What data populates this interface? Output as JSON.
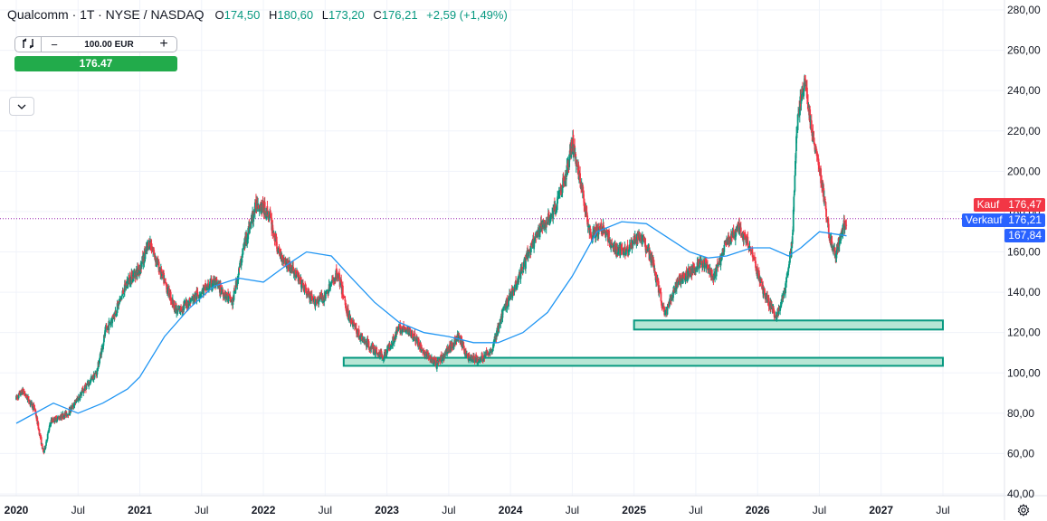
{
  "header": {
    "symbol": "Qualcomm · 1T · NYSE / NASDAQ",
    "open_label": "O",
    "open": "174,50",
    "high_label": "H",
    "high": "180,60",
    "low_label": "L",
    "low": "173,20",
    "close_label": "C",
    "close": "176,21",
    "change": "+2,59 (+1,49%)"
  },
  "trade_panel": {
    "quantity": "100.00 EUR",
    "buy_price": "176.47"
  },
  "price_tags": {
    "kauf_label": "Kauf",
    "kauf_value": "176,47",
    "verkauf_label": "Verkauf",
    "verkauf_value": "176,21",
    "ma_value": "167,84"
  },
  "colors": {
    "up": "#089981",
    "down": "#f23645",
    "ma_line": "#2196f3",
    "zone_fill": "#b7e6d5",
    "zone_border": "#089981",
    "kauf": "#f23645",
    "verkauf": "#2962ff",
    "buy_button": "#22ab4b"
  },
  "icons": [
    "chart-type-icon",
    "minus-icon",
    "plus-icon",
    "chevron-down-icon",
    "settings-icon"
  ],
  "chart_data": {
    "type": "candlestick",
    "y_axis": {
      "ticks": [
        40,
        60,
        80,
        100,
        120,
        140,
        160,
        180,
        200,
        220,
        240,
        260,
        280
      ],
      "tick_labels": [
        "40,00",
        "60,00",
        "80,00",
        "100,00",
        "120,00",
        "140,00",
        "160,00",
        "180,00",
        "200,00",
        "220,00",
        "240,00",
        "260,00",
        "280,00"
      ],
      "range": [
        38,
        288
      ]
    },
    "x_axis": {
      "labels": [
        "2020",
        "Jul",
        "2021",
        "Jul",
        "2022",
        "Jul",
        "2023",
        "Jul",
        "2024",
        "Jul",
        "2025",
        "Jul",
        "2026",
        "Jul",
        "2027",
        "Jul"
      ],
      "label_t": [
        2020.0,
        2020.5,
        2021.0,
        2021.5,
        2022.0,
        2022.5,
        2023.0,
        2023.5,
        2024.0,
        2024.5,
        2025.0,
        2025.5,
        2026.0,
        2026.5,
        2027.0,
        2027.5
      ],
      "range": [
        2020.0,
        2028.13
      ]
    },
    "price_path": [
      [
        2019.9,
        80
      ],
      [
        2020.05,
        91
      ],
      [
        2020.15,
        82
      ],
      [
        2020.22,
        60
      ],
      [
        2020.28,
        76
      ],
      [
        2020.42,
        80
      ],
      [
        2020.55,
        92
      ],
      [
        2020.65,
        100
      ],
      [
        2020.72,
        120
      ],
      [
        2020.8,
        130
      ],
      [
        2020.9,
        145
      ],
      [
        2021.0,
        152
      ],
      [
        2021.08,
        165
      ],
      [
        2021.18,
        148
      ],
      [
        2021.3,
        130
      ],
      [
        2021.45,
        138
      ],
      [
        2021.6,
        145
      ],
      [
        2021.75,
        135
      ],
      [
        2021.85,
        165
      ],
      [
        2021.95,
        185
      ],
      [
        2022.05,
        178
      ],
      [
        2022.12,
        160
      ],
      [
        2022.25,
        150
      ],
      [
        2022.4,
        135
      ],
      [
        2022.5,
        138
      ],
      [
        2022.6,
        150
      ],
      [
        2022.68,
        130
      ],
      [
        2022.78,
        118
      ],
      [
        2022.88,
        112
      ],
      [
        2022.97,
        108
      ],
      [
        2023.1,
        122
      ],
      [
        2023.2,
        120
      ],
      [
        2023.3,
        110
      ],
      [
        2023.4,
        104
      ],
      [
        2023.5,
        112
      ],
      [
        2023.58,
        118
      ],
      [
        2023.65,
        108
      ],
      [
        2023.75,
        106
      ],
      [
        2023.85,
        112
      ],
      [
        2023.95,
        132
      ],
      [
        2024.05,
        145
      ],
      [
        2024.15,
        160
      ],
      [
        2024.25,
        172
      ],
      [
        2024.35,
        180
      ],
      [
        2024.45,
        198
      ],
      [
        2024.5,
        215
      ],
      [
        2024.58,
        190
      ],
      [
        2024.65,
        168
      ],
      [
        2024.75,
        172
      ],
      [
        2024.85,
        160
      ],
      [
        2024.95,
        162
      ],
      [
        2025.05,
        168
      ],
      [
        2025.15,
        155
      ],
      [
        2025.25,
        128
      ],
      [
        2025.35,
        145
      ],
      [
        2025.45,
        150
      ],
      [
        2025.55,
        155
      ],
      [
        2025.65,
        148
      ],
      [
        2025.75,
        165
      ],
      [
        2025.85,
        172
      ],
      [
        2025.95,
        160
      ],
      [
        2026.05,
        140
      ],
      [
        2026.15,
        128
      ],
      [
        2026.22,
        140
      ],
      [
        2026.28,
        165
      ],
      [
        2026.32,
        225
      ],
      [
        2026.38,
        245
      ],
      [
        2026.45,
        215
      ],
      [
        2026.52,
        195
      ],
      [
        2026.58,
        168
      ],
      [
        2026.63,
        158
      ],
      [
        2026.68,
        170
      ],
      [
        2026.72,
        176
      ]
    ],
    "moving_average": {
      "name": "",
      "points": [
        [
          2020.0,
          75
        ],
        [
          2020.3,
          85
        ],
        [
          2020.5,
          80
        ],
        [
          2020.7,
          85
        ],
        [
          2020.9,
          92
        ],
        [
          2021.0,
          98
        ],
        [
          2021.2,
          118
        ],
        [
          2021.4,
          132
        ],
        [
          2021.6,
          143
        ],
        [
          2021.8,
          147
        ],
        [
          2022.0,
          145
        ],
        [
          2022.2,
          154
        ],
        [
          2022.35,
          160
        ],
        [
          2022.55,
          158
        ],
        [
          2022.7,
          148
        ],
        [
          2022.9,
          135
        ],
        [
          2023.1,
          125
        ],
        [
          2023.3,
          120
        ],
        [
          2023.5,
          118
        ],
        [
          2023.7,
          115
        ],
        [
          2023.9,
          115
        ],
        [
          2024.1,
          120
        ],
        [
          2024.3,
          130
        ],
        [
          2024.5,
          148
        ],
        [
          2024.7,
          170
        ],
        [
          2024.9,
          175
        ],
        [
          2025.1,
          174
        ],
        [
          2025.25,
          168
        ],
        [
          2025.45,
          160
        ],
        [
          2025.6,
          157
        ],
        [
          2025.75,
          158
        ],
        [
          2025.95,
          162
        ],
        [
          2026.1,
          162
        ],
        [
          2026.25,
          158
        ],
        [
          2026.35,
          162
        ],
        [
          2026.5,
          170
        ],
        [
          2026.72,
          168
        ]
      ]
    },
    "support_zones": [
      {
        "x0": 2025.0,
        "x1": 2027.5,
        "y0": 121.5,
        "y1": 126
      },
      {
        "x0": 2022.65,
        "x1": 2027.5,
        "y0": 103.5,
        "y1": 107.5
      }
    ],
    "reference_line": {
      "value": 176.47,
      "style": "dotted"
    },
    "last_price": 176.21,
    "title": "",
    "xlabel": "",
    "ylabel": "",
    "grid": true,
    "legend": "none"
  }
}
